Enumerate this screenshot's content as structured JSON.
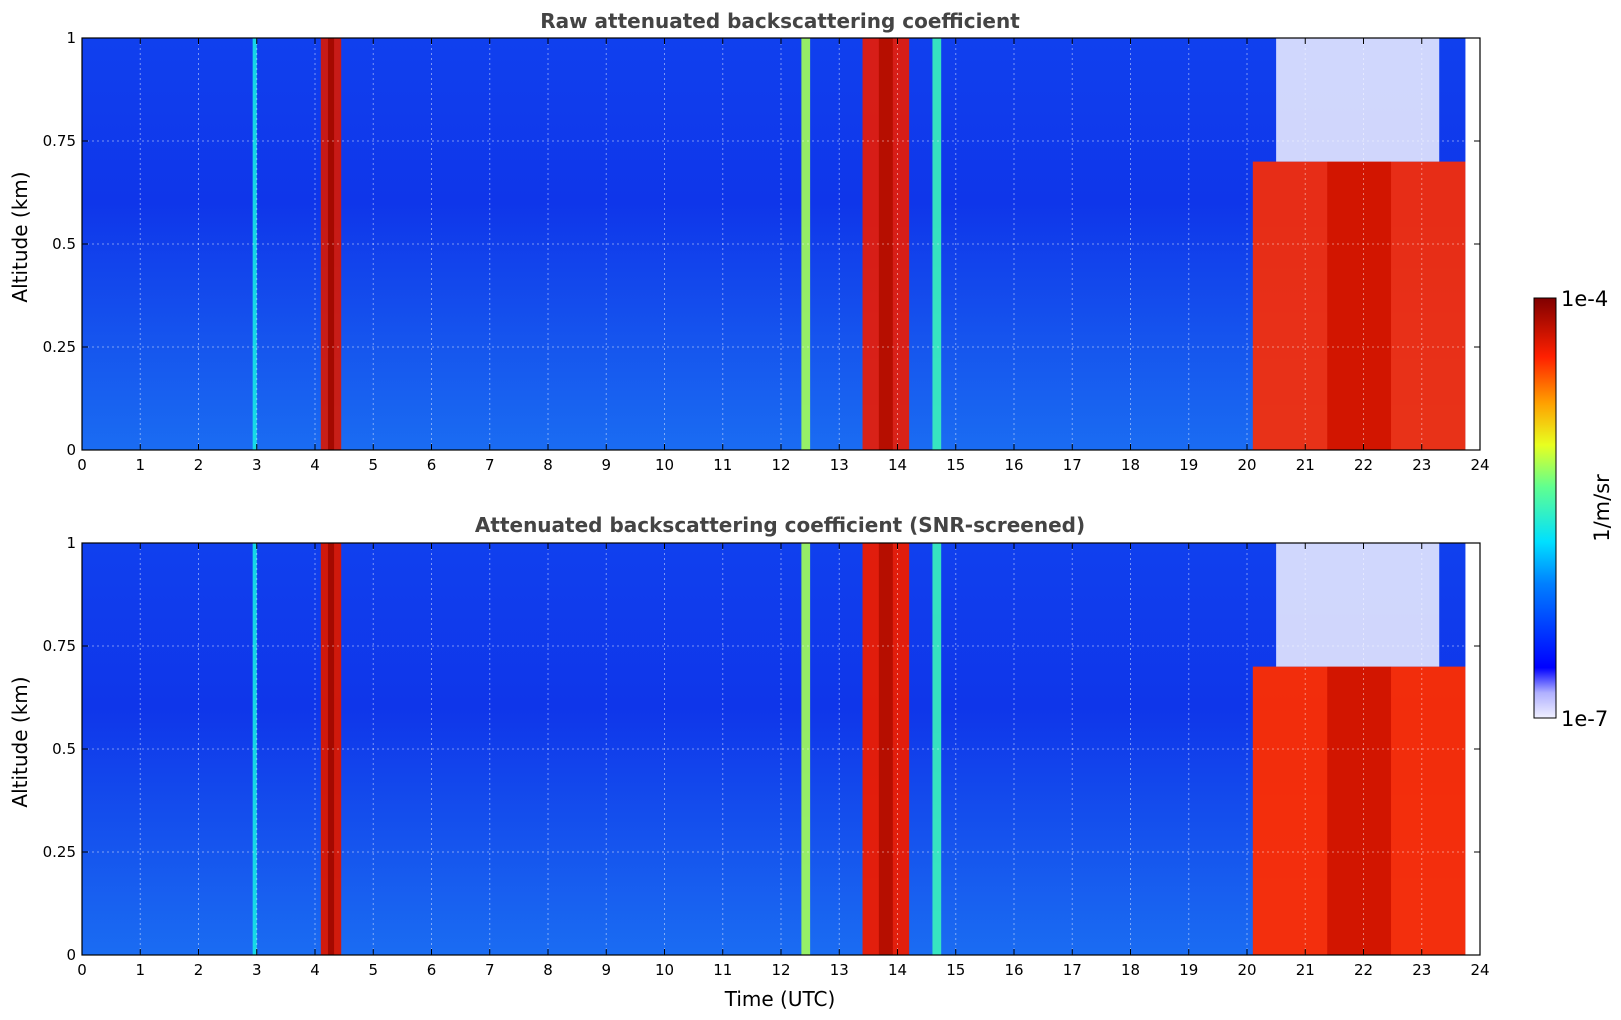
{
  "chart_data": [
    {
      "type": "heatmap",
      "title": "Raw attenuated backscattering coefficient",
      "xlabel": "",
      "ylabel": "Altitude (km)",
      "xlim": [
        0,
        24
      ],
      "ylim": [
        0,
        1
      ],
      "x_ticks": [
        "0",
        "1",
        "2",
        "3",
        "4",
        "5",
        "6",
        "7",
        "8",
        "9",
        "10",
        "11",
        "12",
        "13",
        "14",
        "15",
        "16",
        "17",
        "18",
        "19",
        "20",
        "21",
        "22",
        "23",
        "24"
      ],
      "y_ticks": [
        "0",
        "0.25",
        "0.5",
        "0.75",
        "1"
      ],
      "grid": true,
      "colorscale": "jet (log)",
      "features": [
        {
          "x_start": 2.93,
          "x_end": 3.0,
          "y_top": 1.0,
          "level": 0.45
        },
        {
          "x_start": 4.1,
          "x_end": 4.45,
          "y_top": 1.0,
          "level": 0.9
        },
        {
          "x_start": 12.35,
          "x_end": 12.5,
          "y_top": 1.0,
          "level": 0.6
        },
        {
          "x_start": 13.4,
          "x_end": 14.2,
          "y_top": 1.0,
          "level": 0.88
        },
        {
          "x_start": 14.6,
          "x_end": 14.75,
          "y_top": 1.0,
          "level": 0.5
        },
        {
          "x_start": 20.1,
          "x_end": 23.75,
          "y_top": 0.7,
          "level": 0.85
        }
      ]
    },
    {
      "type": "heatmap",
      "title": "Attenuated backscattering coefficient (SNR-screened)",
      "xlabel": "Time (UTC)",
      "ylabel": "Altitude (km)",
      "xlim": [
        0,
        24
      ],
      "ylim": [
        0,
        1
      ],
      "x_ticks": [
        "0",
        "1",
        "2",
        "3",
        "4",
        "5",
        "6",
        "7",
        "8",
        "9",
        "10",
        "11",
        "12",
        "13",
        "14",
        "15",
        "16",
        "17",
        "18",
        "19",
        "20",
        "21",
        "22",
        "23",
        "24"
      ],
      "y_ticks": [
        "0",
        "0.25",
        "0.5",
        "0.75",
        "1"
      ],
      "grid": true,
      "colorscale": "jet (log)"
    }
  ],
  "colorbar": {
    "label": "1/m/sr",
    "max_label": "1e-4",
    "min_label": "1e-7",
    "range": [
      1e-07,
      0.0001
    ]
  }
}
